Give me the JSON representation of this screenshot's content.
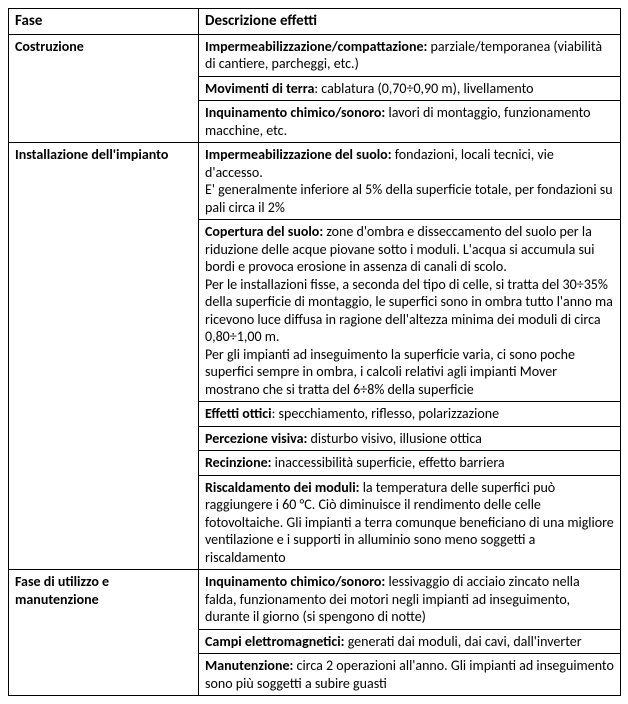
{
  "table": {
    "header": {
      "phase": "Fase",
      "desc": " Descrizione effetti"
    },
    "rows": [
      {
        "phase": "Costruzione",
        "phase_rowspan": 3,
        "cells": [
          {
            "lead": "Impermeabilizzazione/compattazione:",
            "rest": " parziale/temporanea (viabilità di cantiere, parcheggi, etc.)"
          },
          {
            "lead": "Movimenti di terra",
            "rest": ": cablatura (0,70÷0,90 m), livellamento"
          },
          {
            "lead": "Inquinamento chimico/sonoro:",
            "rest": " lavori di montaggio,  funzionamento macchine, etc."
          }
        ]
      },
      {
        "phase": "Installazione dell'impianto",
        "phase_rowspan": 6,
        "cells": [
          {
            "lead": "Impermeabilizzazione del suolo:",
            "rest": " fondazioni, locali tecnici, vie d'accesso.",
            "extra": "E' generalmente  inferiore al 5% della superficie totale, per fondazioni su pali circa il 2%"
          },
          {
            "lead": "Copertura del suolo:",
            "rest": " zone d'ombra e disseccamento del suolo per la riduzione delle acque piovane sotto i moduli. L'acqua si accumula sui bordi e provoca erosione in assenza di canali di scolo.",
            "extra": "Per le installazioni fisse, a seconda del tipo di celle, si tratta del 30÷35% della superficie di montaggio, le superfici sono in ombra tutto l'anno ma ricevono luce diffusa in ragione dell'altezza minima dei moduli di circa 0,80÷1,00 m.",
            "extra2": "Per gli impianti ad inseguimento la superficie varia, ci sono poche superfici sempre in ombra, i calcoli relativi agli impianti Mover mostrano che si tratta del 6÷8% della superficie"
          },
          {
            "lead": "Effetti ottici",
            "rest": ": specchiamento, riflesso, polarizzazione"
          },
          {
            "lead": "Percezione visiva:",
            "rest": " disturbo visivo, illusione ottica"
          },
          {
            "lead": "Recinzione:",
            "rest": " inaccessibilità superficie, effetto barriera"
          },
          {
            "lead": "Riscaldamento dei moduli:",
            "rest": " la temperatura delle superfici può raggiungere i 60 °C. Ciò diminuisce il rendimento delle celle fotovoltaiche. Gli impianti a terra comunque beneficiano di una migliore ventilazione e i supporti in alluminio sono meno soggetti a riscaldamento"
          }
        ]
      },
      {
        "phase": "Fase di utilizzo e manutenzione",
        "phase_rowspan": 3,
        "cells": [
          {
            "lead": "Inquinamento chimico/sonoro:",
            "rest": " lessivaggio di acciaio zincato nella falda, funzionamento dei motori negli impianti ad inseguimento, durante il giorno (si spengono di notte)"
          },
          {
            "lead": "Campi elettromagnetici:",
            "rest": " generati dai moduli, dai cavi, dall'inverter"
          },
          {
            "lead": "Manutenzione:",
            "rest": " circa 2 operazioni all'anno. Gli impianti ad inseguimento sono più soggetti a subire guasti"
          }
        ]
      }
    ]
  }
}
